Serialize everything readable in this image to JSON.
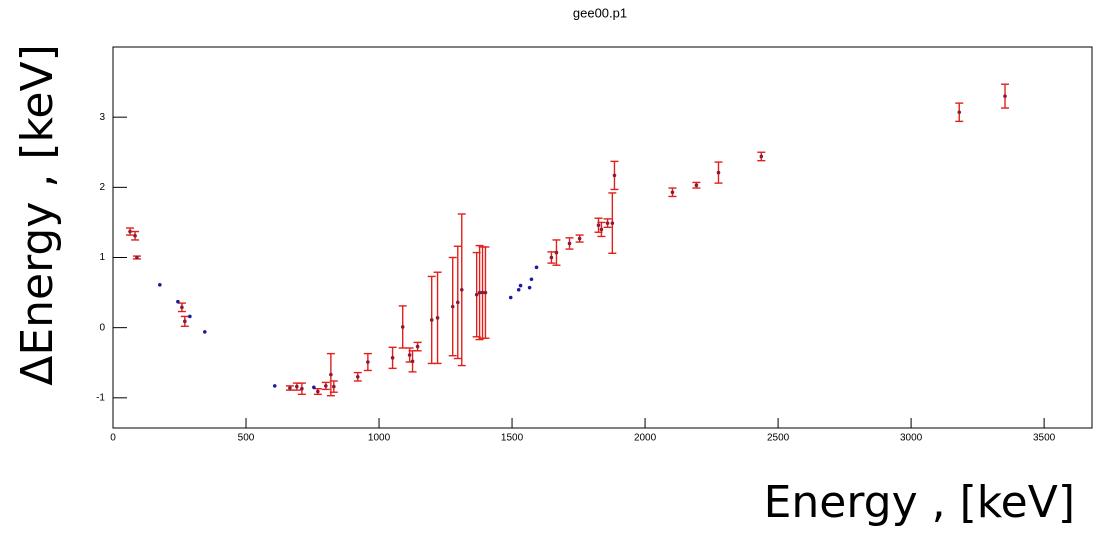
{
  "chart_data": {
    "type": "scatter",
    "title": "gee00.p1",
    "x_label": "Energy , [keV]",
    "y_label": "ΔEnergy , [keV]",
    "xlim": [
      0,
      3680
    ],
    "ylim": [
      -1.43,
      4.0
    ],
    "xticks": [
      0,
      500,
      1000,
      1500,
      2000,
      2500,
      3000,
      3500
    ],
    "yticks": [
      -1,
      0,
      1,
      2,
      3
    ],
    "series": [
      {
        "color": "#8b1a3a",
        "error_color": "#e0201a",
        "x": [
          64,
          83,
          90,
          259,
          270,
          665,
          691,
          710,
          770,
          800,
          819,
          830,
          920,
          958,
          1051,
          1089,
          1115,
          1126,
          1145,
          1198,
          1220,
          1277,
          1296,
          1311,
          1367,
          1378,
          1389,
          1400,
          1648,
          1667,
          1716,
          1754,
          1825,
          1836,
          1859,
          1877,
          1885,
          2103,
          2193,
          2276,
          2437,
          3181,
          3353
        ],
        "values": [
          1.37,
          1.31,
          1.0,
          0.29,
          0.09,
          -0.86,
          -0.84,
          -0.87,
          -0.91,
          -0.83,
          -0.67,
          -0.84,
          -0.7,
          -0.49,
          -0.43,
          0.01,
          -0.39,
          -0.48,
          -0.27,
          0.11,
          0.14,
          0.3,
          0.36,
          0.54,
          0.47,
          0.5,
          0.5,
          0.5,
          1.0,
          1.07,
          1.2,
          1.27,
          1.46,
          1.4,
          1.49,
          1.49,
          2.17,
          1.93,
          2.03,
          2.21,
          2.44,
          3.07,
          3.3
        ],
        "errors": [
          0.05,
          0.06,
          0.02,
          0.06,
          0.07,
          0.03,
          0.05,
          0.08,
          0.04,
          0.05,
          0.3,
          0.08,
          0.06,
          0.12,
          0.15,
          0.3,
          0.1,
          0.15,
          0.06,
          0.62,
          0.65,
          0.7,
          0.8,
          1.08,
          0.6,
          0.67,
          0.65,
          0.65,
          0.08,
          0.18,
          0.08,
          0.05,
          0.1,
          0.1,
          0.06,
          0.43,
          0.2,
          0.06,
          0.04,
          0.15,
          0.06,
          0.13,
          0.17
        ]
      },
      {
        "color": "#1a1aa0",
        "x": [
          176,
          244,
          289,
          345,
          608,
          755,
          1495,
          1525,
          1532,
          1566,
          1573,
          1592
        ],
        "values": [
          0.61,
          0.37,
          0.16,
          -0.06,
          -0.83,
          -0.85,
          0.43,
          0.54,
          0.6,
          0.57,
          0.69,
          0.86
        ]
      }
    ]
  }
}
